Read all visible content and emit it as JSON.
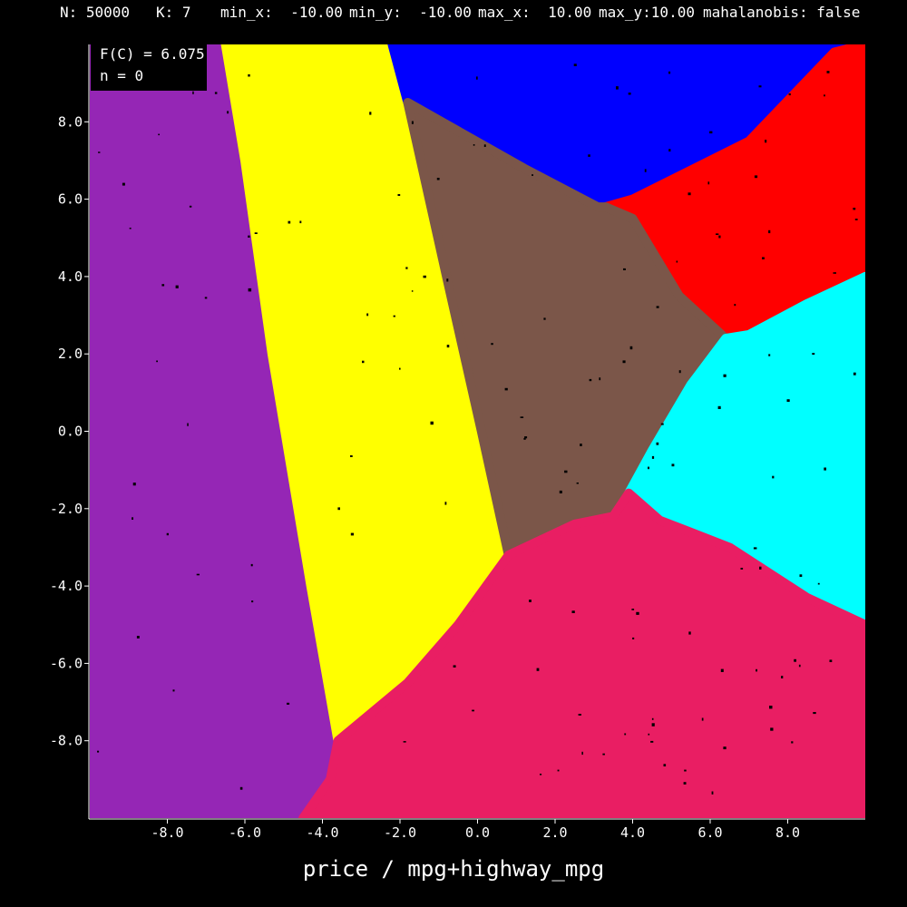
{
  "header": {
    "n": "N: 50000",
    "k": "K: 7",
    "min_x": "min_x:  -10.00",
    "min_y": "min_y:  -10.00",
    "max_x": "max_x:  10.00",
    "max_y": "max_y:10.00",
    "mahalanobis": "mahalanobis: false"
  },
  "overlay": {
    "objective": "F(C) = 6.075",
    "iteration": "n = 0"
  },
  "chart_data": {
    "type": "scatter",
    "title": "",
    "xlabel": "price / mpg+highway_mpg",
    "ylabel": "",
    "xlim": [
      -10,
      10
    ],
    "ylim": [
      -10,
      10
    ],
    "grid": false,
    "x_ticks": [
      -8.0,
      -6.0,
      -4.0,
      -2.0,
      0.0,
      2.0,
      4.0,
      6.0,
      8.0
    ],
    "y_ticks": [
      8.0,
      6.0,
      4.0,
      2.0,
      0.0,
      -2.0,
      -4.0,
      -6.0,
      -8.0
    ],
    "x_tick_labels": [
      "-8.0",
      "-6.0",
      "-4.0",
      "-2.0",
      "0.0",
      "2.0",
      "4.0",
      "6.0",
      "8.0"
    ],
    "y_tick_labels": [
      "8.0",
      "6.0",
      "4.0",
      "2.0",
      "0.0",
      "-2.0",
      "-4.0",
      "-6.0",
      "-8.0"
    ],
    "clusters": [
      {
        "color": "#9526b5",
        "region": [
          [
            -10,
            10
          ],
          [
            -6.5,
            10
          ],
          [
            -6,
            7
          ],
          [
            -5.3,
            2
          ],
          [
            -4.3,
            -4
          ],
          [
            -3.6,
            -8
          ],
          [
            -3.8,
            -9
          ],
          [
            -4.5,
            -10
          ],
          [
            -10,
            -10
          ]
        ]
      },
      {
        "color": "#ffff00",
        "region": [
          [
            -6.5,
            10
          ],
          [
            -2.2,
            10
          ],
          [
            -1.8,
            8.5
          ],
          [
            -0.8,
            4
          ],
          [
            0.1,
            0
          ],
          [
            0.8,
            -3.2
          ],
          [
            -0.5,
            -5
          ],
          [
            -1.8,
            -6.5
          ],
          [
            -3.6,
            -8
          ],
          [
            -4.3,
            -4
          ],
          [
            -5.3,
            2
          ],
          [
            -6,
            7
          ]
        ]
      },
      {
        "color": "#0000ff",
        "region": [
          [
            -2.2,
            10
          ],
          [
            10,
            10
          ],
          [
            9.2,
            9.8
          ],
          [
            7,
            7.5
          ],
          [
            4,
            6
          ],
          [
            3.1,
            5.8
          ],
          [
            1.2,
            6.8
          ],
          [
            -1.8,
            8.5
          ]
        ]
      },
      {
        "color": "#ff0000",
        "region": [
          [
            10,
            10
          ],
          [
            10,
            4
          ],
          [
            8.5,
            3.3
          ],
          [
            7,
            2.5
          ],
          [
            6.4,
            2.4
          ],
          [
            5.2,
            3.5
          ],
          [
            4,
            5.5
          ],
          [
            3.3,
            5.8
          ],
          [
            4,
            6
          ],
          [
            7,
            7.5
          ],
          [
            9.2,
            9.8
          ]
        ]
      },
      {
        "color": "#7b5649",
        "region": [
          [
            -1.8,
            8.5
          ],
          [
            1.2,
            6.8
          ],
          [
            3.1,
            5.8
          ],
          [
            3.3,
            5.8
          ],
          [
            4,
            5.5
          ],
          [
            5.2,
            3.5
          ],
          [
            6.4,
            2.4
          ],
          [
            5.5,
            1.2
          ],
          [
            4.5,
            -0.5
          ],
          [
            3.9,
            -1.6
          ],
          [
            3.5,
            -2.2
          ],
          [
            2.5,
            -2.4
          ],
          [
            0.8,
            -3.2
          ],
          [
            0.1,
            0
          ],
          [
            -0.8,
            4
          ]
        ]
      },
      {
        "color": "#00ffff",
        "region": [
          [
            6.4,
            2.4
          ],
          [
            7,
            2.5
          ],
          [
            8.5,
            3.3
          ],
          [
            10,
            4
          ],
          [
            10,
            -5
          ],
          [
            8.5,
            -4.3
          ],
          [
            6.5,
            -3
          ],
          [
            4.7,
            -2.3
          ],
          [
            3.9,
            -1.6
          ],
          [
            4.5,
            -0.5
          ],
          [
            5.5,
            1.2
          ]
        ]
      },
      {
        "color": "#e91e63",
        "region": [
          [
            0.8,
            -3.2
          ],
          [
            2.5,
            -2.4
          ],
          [
            3.5,
            -2.2
          ],
          [
            3.9,
            -1.6
          ],
          [
            4.7,
            -2.3
          ],
          [
            6.5,
            -3
          ],
          [
            8.5,
            -4.3
          ],
          [
            10,
            -5
          ],
          [
            10,
            -10
          ],
          [
            -4.5,
            -10
          ],
          [
            -3.8,
            -9
          ],
          [
            -3.6,
            -8
          ],
          [
            -1.8,
            -6.5
          ],
          [
            -0.5,
            -5
          ]
        ]
      }
    ]
  }
}
